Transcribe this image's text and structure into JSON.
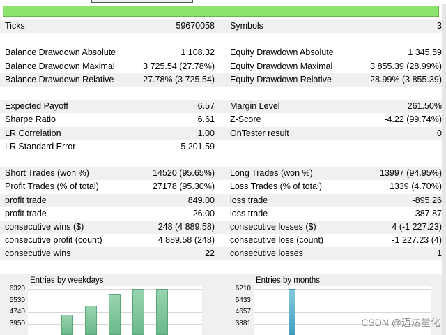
{
  "stats": {
    "rows": [
      {
        "type": "row",
        "shade": true,
        "left_label": "Ticks",
        "left_value": "59670058",
        "right_label": "Symbols",
        "right_value": "3"
      },
      {
        "type": "spacer"
      },
      {
        "type": "row",
        "shade": false,
        "left_label": "Balance Drawdown Absolute",
        "left_value": "1 108.32",
        "right_label": "Equity Drawdown Absolute",
        "right_value": "1 345.59"
      },
      {
        "type": "row",
        "shade": false,
        "left_label": "Balance Drawdown Maximal",
        "left_value": "3 725.54 (27.78%)",
        "right_label": "Equity Drawdown Maximal",
        "right_value": "3 855.39 (28.99%)"
      },
      {
        "type": "row",
        "shade": true,
        "left_label": "Balance Drawdown Relative",
        "left_value": "27.78% (3 725.54)",
        "right_label": "Equity Drawdown Relative",
        "right_value": "28.99% (3 855.39)"
      },
      {
        "type": "spacer"
      },
      {
        "type": "row",
        "shade": true,
        "left_label": "Expected Payoff",
        "left_value": "6.57",
        "right_label": "Margin Level",
        "right_value": "261.50%"
      },
      {
        "type": "row",
        "shade": false,
        "left_label": "Sharpe Ratio",
        "left_value": "6.61",
        "right_label": "Z-Score",
        "right_value": "-4.22 (99.74%)"
      },
      {
        "type": "row",
        "shade": true,
        "left_label": "LR Correlation",
        "left_value": "1.00",
        "right_label": "OnTester result",
        "right_value": "0"
      },
      {
        "type": "row",
        "shade": false,
        "left_label": "LR Standard Error",
        "left_value": "5 201.59",
        "right_label": "",
        "right_value": ""
      },
      {
        "type": "spacer"
      },
      {
        "type": "row",
        "shade": true,
        "left_label": "Short Trades (won %)",
        "left_value": "14520 (95.65%)",
        "right_label": "Long Trades (won %)",
        "right_value": "13997 (94.95%)"
      },
      {
        "type": "row",
        "shade": false,
        "left_label": "Profit Trades (% of total)",
        "left_value": "27178 (95.30%)",
        "right_label": "Loss Trades (% of total)",
        "right_value": "1339 (4.70%)"
      },
      {
        "type": "row",
        "shade": true,
        "left_label": "profit trade",
        "left_value": "849.00",
        "right_label": "loss trade",
        "right_value": "-895.26"
      },
      {
        "type": "row",
        "shade": false,
        "left_label": "profit trade",
        "left_value": "26.00",
        "right_label": "loss trade",
        "right_value": "-387.87"
      },
      {
        "type": "row",
        "shade": true,
        "left_label": "consecutive wins ($)",
        "left_value": "248 (4 889.58)",
        "right_label": "consecutive losses ($)",
        "right_value": "4 (-1 227.23)"
      },
      {
        "type": "row",
        "shade": false,
        "left_label": "consecutive profit (count)",
        "left_value": "4 889.58 (248)",
        "right_label": "consecutive loss (count)",
        "right_value": "-1 227.23 (4)"
      },
      {
        "type": "row",
        "shade": true,
        "left_label": "consecutive wins",
        "left_value": "22",
        "right_label": "consecutive losses",
        "right_value": "1"
      }
    ]
  },
  "chart_data": [
    {
      "type": "bar",
      "title": "Entries by weekdays",
      "yticks": [
        "6320",
        "5530",
        "4740",
        "3950"
      ],
      "ylim": [
        3160,
        6320
      ],
      "values": [
        4580,
        5180,
        6000,
        6320,
        6320
      ],
      "color": "#7cc49a"
    },
    {
      "type": "bar",
      "title": "Entries by months",
      "yticks": [
        "6210",
        "5433",
        "4657",
        "3881"
      ],
      "ylim": [
        3105,
        6210
      ],
      "values": [
        6210
      ],
      "color": "#52aac8"
    }
  ],
  "watermark": "CSDN @迈达量化",
  "colors": {
    "progress": "#8de36d",
    "row_shade": "#f0f0f0"
  }
}
